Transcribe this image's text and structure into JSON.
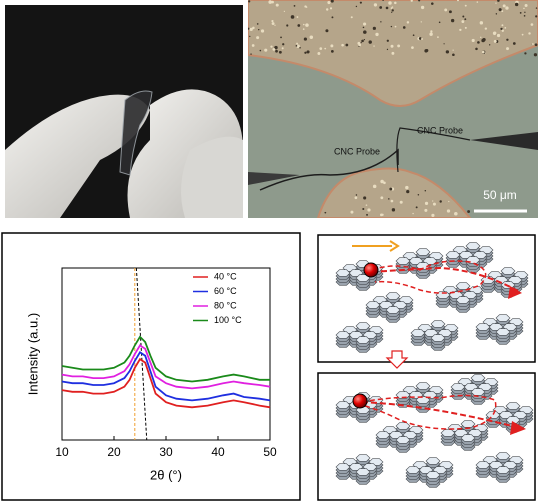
{
  "micrograph": {
    "probe_labels": [
      "CNC Probe",
      "CNC Probe"
    ],
    "scale_bar": "50 μm"
  },
  "chart_data": {
    "type": "line",
    "x_label": "2θ (°)",
    "y_label": "Intensity (a.u.)",
    "x": [
      10,
      12,
      14,
      16,
      18,
      20,
      22,
      23,
      24,
      25,
      26,
      27,
      28,
      30,
      32,
      35,
      38,
      41,
      43,
      45,
      48,
      50
    ],
    "series": [
      {
        "name": "40 °C",
        "color": "#e02020",
        "values": [
          29,
          28,
          28,
          27,
          27,
          28,
          31,
          35,
          42,
          47,
          45,
          36,
          27,
          22,
          20,
          19,
          20,
          22,
          23,
          22,
          20,
          19
        ]
      },
      {
        "name": "60 °C",
        "color": "#1f2fe0",
        "values": [
          34,
          33,
          33,
          32,
          32,
          33,
          36,
          40,
          46,
          51,
          49,
          40,
          31,
          26,
          24,
          23,
          24,
          26,
          27,
          25,
          24,
          23
        ]
      },
      {
        "name": "80 °C",
        "color": "#e020e0",
        "values": [
          38,
          37,
          37,
          36,
          36,
          37,
          40,
          44,
          50,
          55,
          53,
          45,
          37,
          33,
          31,
          30,
          31,
          33,
          34,
          33,
          32,
          31
        ]
      },
      {
        "name": "100 °C",
        "color": "#1a8a1a",
        "values": [
          43,
          42,
          41,
          41,
          41,
          42,
          45,
          49,
          55,
          60,
          57,
          49,
          42,
          37,
          35,
          34,
          35,
          37,
          38,
          37,
          35,
          35
        ]
      }
    ],
    "reference_lines": [
      {
        "color": "#f0a030",
        "x": [
          24,
          24
        ]
      },
      {
        "color": "#000000",
        "x": [
          24.3,
          26.3
        ]
      }
    ],
    "xlim": [
      10,
      50
    ],
    "xticks": [
      10,
      20,
      30,
      40,
      50
    ],
    "ylim": [
      0,
      100
    ],
    "legend": "upper right"
  }
}
